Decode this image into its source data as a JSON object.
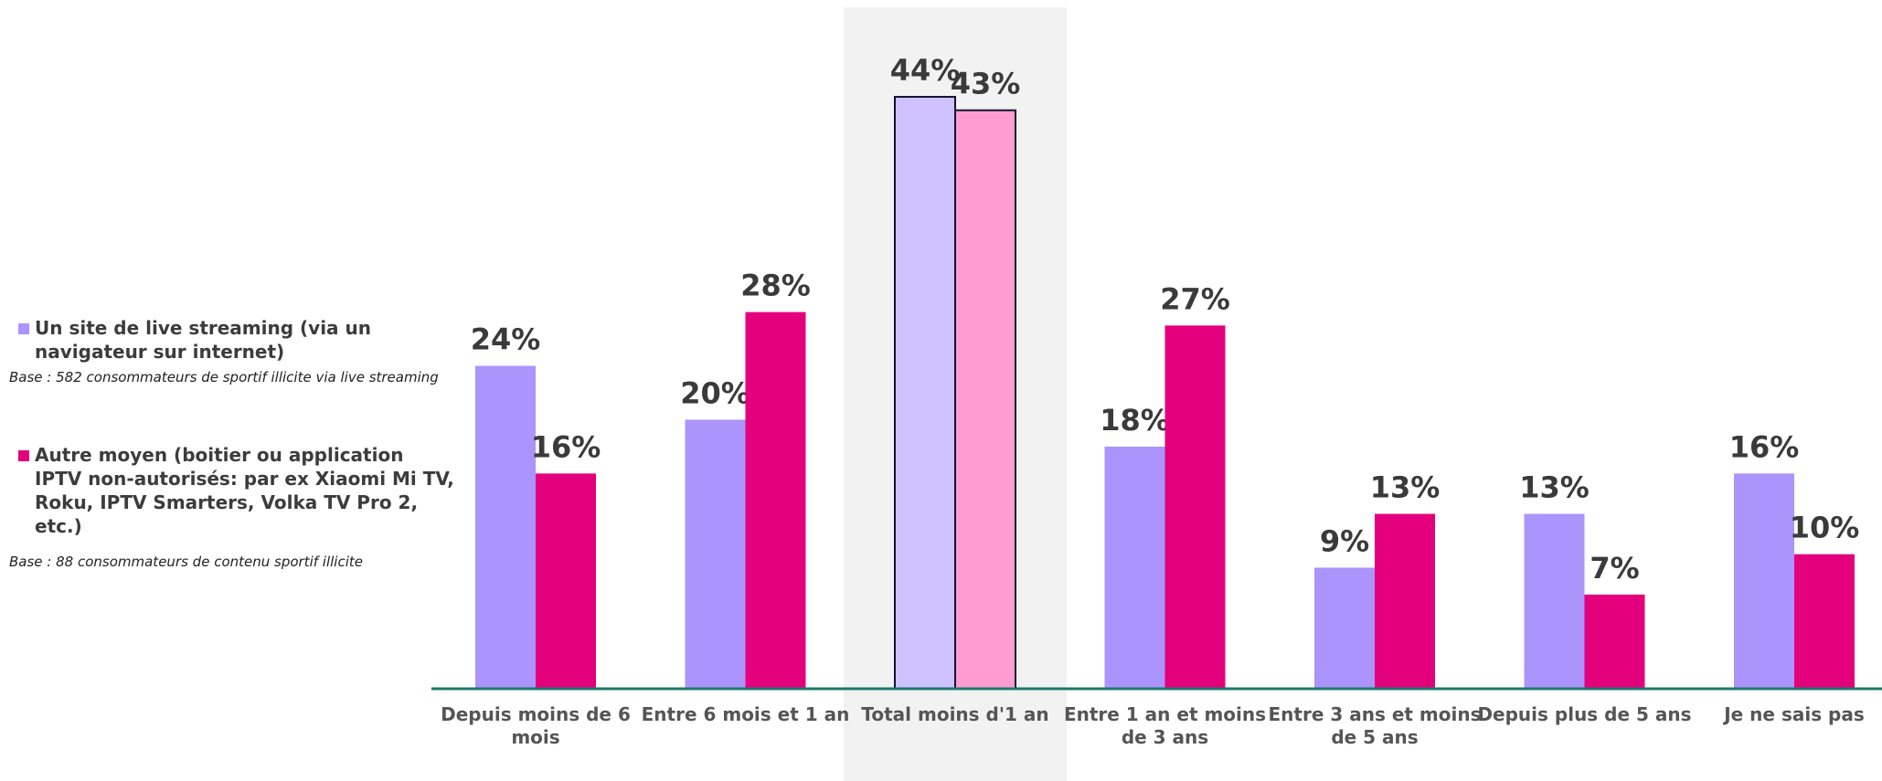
{
  "chart_data": {
    "type": "bar",
    "categories": [
      [
        "Depuis moins de 6",
        "mois"
      ],
      [
        "Entre 6 mois et 1 an"
      ],
      [
        "Total moins d'1 an"
      ],
      [
        "Entre 1 an et moins",
        "de 3 ans"
      ],
      [
        "Entre 3 ans et moins",
        "de 5 ans"
      ],
      [
        "Depuis plus de 5 ans"
      ],
      [
        "Je ne sais pas"
      ]
    ],
    "series": [
      {
        "name": "Un site de live streaming (via un navigateur sur internet)",
        "base": "Base : 582 consommateurs de sportif illicite via live streaming",
        "color": "#ab94fb",
        "highlight_color": "#d0c2ff",
        "values": [
          24,
          20,
          44,
          18,
          9,
          13,
          16
        ],
        "labels": [
          "24%",
          "20%",
          "44%",
          "18%",
          "9%",
          "13%",
          "16%"
        ]
      },
      {
        "name": "Autre moyen (boitier ou application IPTV non-autorisés: par ex Xiaomi Mi TV, Roku, IPTV Smarters, Volka TV Pro 2, etc.)",
        "base": "Base : 88 consommateurs de contenu sportif illicite",
        "color": "#e4007c",
        "highlight_color": "#ff9dd3",
        "values": [
          16,
          28,
          43,
          27,
          13,
          7,
          10
        ],
        "labels": [
          "16%",
          "28%",
          "43%",
          "27%",
          "13%",
          "7%",
          "10%"
        ]
      }
    ],
    "highlighted_category_index": 2,
    "highlight_background": "#f2f2f2",
    "axis_color": "#1a7a6a",
    "ylim": [
      0,
      44
    ],
    "legend_position": "left"
  }
}
